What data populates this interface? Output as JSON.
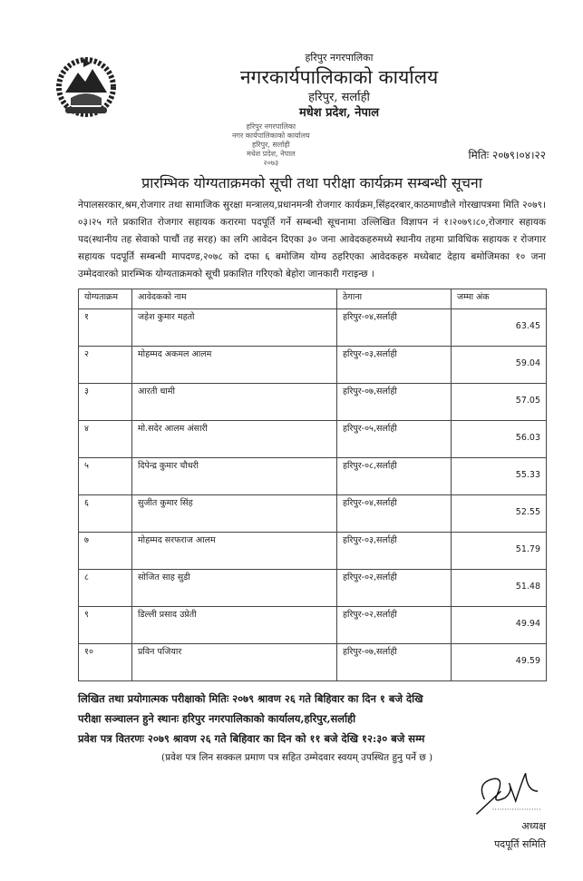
{
  "header": {
    "municipality": "हरिपुर नगरपालिका",
    "office": "नगरकार्यपालिकाको कार्यालय",
    "location": "हरिपुर, सर्लाही",
    "province": "मधेश प्रदेश, नेपाल",
    "stamp": [
      "हरिपुर नगरपालिका",
      "नगर कार्यपालिकाको कार्यालय",
      "हरिपुर, सर्लाही",
      "मधेश प्रदेश, नेपाल",
      "२०७३"
    ],
    "date": "मितिः २०७९।०४।२२"
  },
  "title": "प्रारम्भिक योग्यताक्रमको सूची तथा परीक्षा कार्यक्रम सम्बन्धी सूचना",
  "body": "नेपालसरकार,श्रम,रोजगार तथा सामाजिक सुरक्षा मन्त्रालय,प्रधानमन्त्री रोजगार कार्यक्रम,सिंहदरबार,काठमाण्डौले गोरखापत्रमा मिति २०७९।०३।२५ गते प्रकाशित रोजगार सहायक करारमा पदपूर्ति गर्ने सम्बन्धी सूचनामा उल्लिखित विज्ञापन नं १।२०७९।८०,रोजगार सहायक पद(स्थानीय तह सेवाको पाचौं तह सरह) का लगि आवेदन दिएका ३० जना आवेदकहरुमध्ये स्थानीय तहमा प्राविधिक सहायक र रोजगार सहायक पदपूर्ति सम्बन्धी मापदण्ड,२०७८ को दफा ६ बमोजिम योग्य ठहरिएका आवेदकहरु मध्येबाट देहाय बमोजिमका १० जना उम्मेदवारको प्रारम्भिक योग्यताक्रमको सूची प्रकाशित गरिएको बेहोरा जानकारी गराइन्छ ।",
  "table": {
    "headers": [
      "योग्यताक्रम",
      "आवेदकको नाम",
      "ठेगाना",
      "जम्मा अंक"
    ],
    "rows": [
      [
        "१",
        "जहेश कुमार महतो",
        "हरिपुर-०४,सर्लाही",
        "63.45"
      ],
      [
        "२",
        "मोहम्मद अकमल आलम",
        "हरिपुर-०३,सर्लाही",
        "59.04"
      ],
      [
        "३",
        "आरती धामी",
        "हरिपुर-०७,सर्लाही",
        "57.05"
      ],
      [
        "४",
        "मो.सदेर आलम अंसारी",
        "हरिपुर-०५,सर्लाही",
        "56.03"
      ],
      [
        "५",
        "दिपेन्द्र कुमार चौधरी",
        "हरिपुर-०८,सर्लाही",
        "55.33"
      ],
      [
        "६",
        "सुजीत कुमार सिंह",
        "हरिपुर-०४,सर्लाही",
        "52.55"
      ],
      [
        "७",
        "मोहम्मद सरफराज आलम",
        "हरिपुर-०३,सर्लाही",
        "51.79"
      ],
      [
        "८",
        "सोजित साह सुडी",
        "हरिपुर-०२,सर्लाही",
        "51.48"
      ],
      [
        "९",
        "डिल्ली प्रसाद उप्रेती",
        "हरिपुर-०२,सर्लाही",
        "49.94"
      ],
      [
        "१०",
        "प्रविन पजियार",
        "हरिपुर-०७,सर्लाही",
        "49.59"
      ]
    ]
  },
  "footer": {
    "exam_date": "लिखित तथा प्रयोगात्मक परीक्षाको  मितिः २०७९ श्रावण २६ गते बिहिवार का दिन १ बजे देखि",
    "exam_venue": "परीक्षा सञ्चालन हुने स्थानः हरिपुर नगरपालिकाको कार्यालय,हरिपुर,सर्लाही",
    "admit_card": "प्रवेश पत्र वितरणः २०७९ श्रावण २६ गते बिहिवार का दिन को ११ बजे देखि १२:३० बजे सम्म",
    "note": "(प्रवेश पत्र लिन सक्कल प्रमाण पत्र सहित उम्मेदवार स्वयम् उपस्थित हुनु पर्ने छ )",
    "signatory_title": "अध्यक्ष",
    "committee": "पदपूर्ति समिति"
  }
}
